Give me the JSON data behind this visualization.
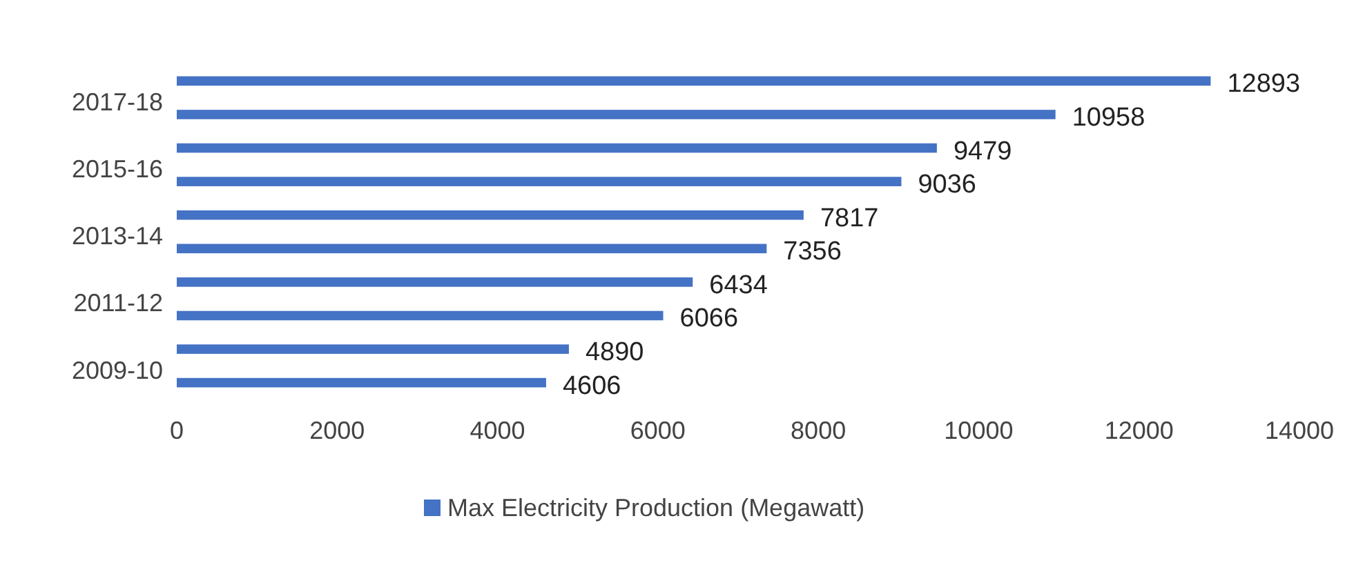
{
  "chart_data": {
    "type": "bar",
    "orientation": "horizontal",
    "categories": [
      null,
      "2017-18",
      null,
      "2015-16",
      null,
      "2013-14",
      null,
      "2011-12",
      null,
      "2009-10"
    ],
    "series": [
      {
        "name": "Max Electricity Production (Megawatt)",
        "color": "#4472c4",
        "values": [
          12893,
          10958,
          9479,
          9036,
          7817,
          7356,
          6434,
          6066,
          4890,
          4606
        ]
      }
    ],
    "xlim": [
      0,
      14000
    ],
    "xticks": [
      0,
      2000,
      4000,
      6000,
      8000,
      10000,
      12000,
      14000
    ],
    "data_labels": true,
    "legend": "bottom",
    "grid": false
  }
}
